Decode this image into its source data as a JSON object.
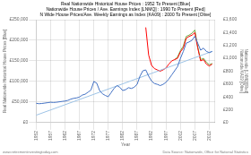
{
  "chart_data": {
    "type": "line",
    "title": [
      "Real Nationwide Historical House Prices : 1952 To Present [Blue]",
      "Nationwide House Prices / Ave. Earnings Index [LNMQ] : 1990 To Present [Red]",
      "N Wide House Prices/Ave. Weekly Earnings as Index (KA09) : 2000 To Present [Olive]"
    ],
    "xlabel": "Year",
    "ylabel": "Real Nationwide Historical House Prices [Blue]",
    "y2label": [
      "Nationwide [LNMQ][Red]",
      "Nationwide/KA09 [Olive]"
    ],
    "annotations": [
      "www.retirementinvestingtoday.com",
      "Data Source: Nationwide, Office for National Statistics"
    ],
    "grid": true,
    "xlim": [
      1952,
      2014
    ],
    "xticks": [
      1952,
      1957,
      1962,
      1967,
      1972,
      1977,
      1982,
      1987,
      1992,
      1997,
      2002,
      2007,
      2012
    ],
    "ylim": [
      0,
      250000
    ],
    "yticks": [
      {
        "value": 0,
        "label": "£0"
      },
      {
        "value": 50000,
        "label": "£50,000"
      },
      {
        "value": 100000,
        "label": "£100,000"
      },
      {
        "value": 150000,
        "label": "£150,000"
      },
      {
        "value": 200000,
        "label": "£200,000"
      },
      {
        "value": 250000,
        "label": "£250,000"
      }
    ],
    "y2lim": [
      0,
      1600
    ],
    "y2ticks": [
      {
        "value": 0,
        "label": "£0"
      },
      {
        "value": 200,
        "label": "£200"
      },
      {
        "value": 400,
        "label": "£400"
      },
      {
        "value": 600,
        "label": "£600"
      },
      {
        "value": 800,
        "label": "£800"
      },
      {
        "value": 1000,
        "label": "£1,000"
      },
      {
        "value": 1200,
        "label": "£1,200"
      },
      {
        "value": 1400,
        "label": "£1,400"
      },
      {
        "value": 1600,
        "label": "£1,600"
      }
    ],
    "series": [
      {
        "color": "#4472C4",
        "x": [
          1952,
          1953,
          1954,
          1955,
          1956,
          1957,
          1958,
          1959,
          1960,
          1961,
          1962,
          1963,
          1964,
          1965,
          1966,
          1967,
          1968,
          1969,
          1970,
          1971,
          1972,
          1973,
          1974,
          1975,
          1976,
          1977,
          1978,
          1979,
          1980,
          1981,
          1982,
          1983,
          1984,
          1985,
          1986,
          1987,
          1988,
          1989,
          1990,
          1991,
          1992,
          1993,
          1994,
          1995,
          1996,
          1997,
          1998,
          1999,
          2000,
          2001,
          2002,
          2003,
          2004,
          2005,
          2006,
          2007,
          2008,
          2009,
          2010,
          2011,
          2012,
          2013
        ],
        "values": [
          47000,
          46000,
          46500,
          47500,
          48500,
          49500,
          49000,
          49500,
          50500,
          51500,
          52500,
          54000,
          57000,
          59000,
          60000,
          62000,
          67000,
          69000,
          74000,
          79000,
          100000,
          96000,
          78000,
          70000,
          66000,
          63000,
          73000,
          83000,
          90000,
          86000,
          78000,
          80000,
          85000,
          83000,
          86000,
          93000,
          113000,
          126000,
          128000,
          113000,
          101000,
          95000,
          93000,
          90000,
          93000,
          98000,
          106000,
          116000,
          126000,
          136000,
          156000,
          173000,
          193000,
          196000,
          200000,
          210000,
          193000,
          176000,
          181000,
          173000,
          170000,
          173000
        ]
      },
      {
        "color": "#9DC3E6",
        "x": [
          1952,
          2013
        ],
        "values": [
          18000,
          173000
        ]
      },
      {
        "color": "#FF0000",
        "axis": "y2",
        "x": [
          1990,
          1991,
          1992,
          1993,
          1994,
          1995,
          1996,
          1997,
          1998,
          1999,
          2000,
          2001,
          2002,
          2003,
          2004,
          2005,
          2006,
          2007,
          2008,
          2009,
          2010,
          2011,
          2012,
          2013
        ],
        "values": [
          1480,
          1050,
          890,
          840,
          820,
          800,
          820,
          850,
          910,
          960,
          980,
          1000,
          1100,
          1160,
          1310,
          1340,
          1360,
          1400,
          1160,
          960,
          980,
          910,
          880,
          910
        ]
      },
      {
        "color": "#70AD47",
        "axis": "y2",
        "x": [
          2000,
          2001,
          2002,
          2003,
          2004,
          2005,
          2006,
          2007,
          2008,
          2009,
          2010,
          2011,
          2012,
          2013
        ],
        "values": [
          980,
          1020,
          1120,
          1190,
          1340,
          1360,
          1390,
          1440,
          1180,
          980,
          1000,
          940,
          900,
          920
        ]
      }
    ]
  }
}
